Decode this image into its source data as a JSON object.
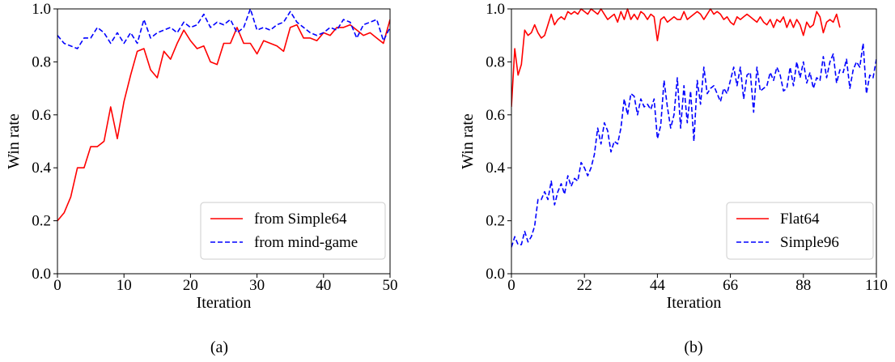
{
  "chart_data": [
    {
      "type": "line",
      "caption": "(a)",
      "xlabel": "Iteration",
      "ylabel": "Win rate",
      "xlim": [
        0,
        50
      ],
      "ylim": [
        0,
        1.0
      ],
      "xticks": [
        "0",
        "10",
        "20",
        "30",
        "40",
        "50"
      ],
      "yticks": [
        "0.0",
        "0.2",
        "0.4",
        "0.6",
        "0.8",
        "1.0"
      ],
      "legend_position": "lower-right",
      "series": [
        {
          "name": "from Simple64",
          "color": "#ff0000",
          "style": "solid",
          "x": [
            0,
            1,
            2,
            3,
            4,
            5,
            6,
            7,
            8,
            9,
            10,
            11,
            12,
            13,
            14,
            15,
            16,
            17,
            18,
            19,
            20,
            21,
            22,
            23,
            24,
            25,
            26,
            27,
            28,
            29,
            30,
            31,
            32,
            33,
            34,
            35,
            36,
            37,
            38,
            39,
            40,
            41,
            42,
            43,
            44,
            45,
            46,
            47,
            48,
            49,
            50
          ],
          "values": [
            0.2,
            0.23,
            0.29,
            0.4,
            0.4,
            0.48,
            0.48,
            0.5,
            0.63,
            0.51,
            0.65,
            0.75,
            0.84,
            0.85,
            0.77,
            0.74,
            0.84,
            0.81,
            0.87,
            0.92,
            0.88,
            0.85,
            0.86,
            0.8,
            0.79,
            0.87,
            0.87,
            0.93,
            0.87,
            0.87,
            0.83,
            0.88,
            0.87,
            0.86,
            0.84,
            0.93,
            0.94,
            0.89,
            0.89,
            0.88,
            0.91,
            0.9,
            0.93,
            0.93,
            0.94,
            0.92,
            0.9,
            0.91,
            0.89,
            0.87,
            0.96
          ]
        },
        {
          "name": "from mind-game",
          "color": "#0000ff",
          "style": "dashed",
          "x": [
            0,
            1,
            2,
            3,
            4,
            5,
            6,
            7,
            8,
            9,
            10,
            11,
            12,
            13,
            14,
            15,
            16,
            17,
            18,
            19,
            20,
            21,
            22,
            23,
            24,
            25,
            26,
            27,
            28,
            29,
            30,
            31,
            32,
            33,
            34,
            35,
            36,
            37,
            38,
            39,
            40,
            41,
            42,
            43,
            44,
            45,
            46,
            47,
            48,
            49,
            50
          ],
          "values": [
            0.9,
            0.87,
            0.86,
            0.85,
            0.89,
            0.89,
            0.93,
            0.91,
            0.87,
            0.91,
            0.87,
            0.91,
            0.87,
            0.96,
            0.89,
            0.91,
            0.92,
            0.93,
            0.91,
            0.95,
            0.93,
            0.94,
            0.98,
            0.93,
            0.95,
            0.94,
            0.96,
            0.91,
            0.93,
            1.0,
            0.92,
            0.93,
            0.92,
            0.94,
            0.95,
            0.99,
            0.95,
            0.93,
            0.91,
            0.9,
            0.91,
            0.93,
            0.92,
            0.96,
            0.95,
            0.89,
            0.94,
            0.95,
            0.96,
            0.88,
            0.93
          ]
        }
      ]
    },
    {
      "type": "line",
      "caption": "(b)",
      "xlabel": "Iteration",
      "ylabel": "Win rate",
      "xlim": [
        0,
        110
      ],
      "ylim": [
        0,
        1.0
      ],
      "xticks": [
        "0",
        "22",
        "44",
        "66",
        "88",
        "110"
      ],
      "yticks": [
        "0.0",
        "0.2",
        "0.4",
        "0.6",
        "0.8",
        "1.0"
      ],
      "legend_position": "lower-right",
      "series": [
        {
          "name": "Flat64",
          "color": "#ff0000",
          "style": "solid",
          "x": [
            0,
            1,
            2,
            3,
            4,
            5,
            6,
            7,
            8,
            9,
            10,
            11,
            12,
            13,
            14,
            15,
            16,
            17,
            18,
            19,
            20,
            21,
            22,
            23,
            24,
            25,
            26,
            27,
            28,
            29,
            30,
            31,
            32,
            33,
            34,
            35,
            36,
            37,
            38,
            39,
            40,
            41,
            42,
            43,
            44,
            45,
            46,
            47,
            48,
            49,
            50,
            51,
            52,
            53,
            54,
            55,
            56,
            57,
            58,
            59,
            60,
            61,
            62,
            63,
            64,
            65,
            66,
            67,
            68,
            69,
            70,
            71,
            72,
            73,
            74,
            75,
            76,
            77,
            78,
            79,
            80,
            81,
            82,
            83,
            84,
            85,
            86,
            87,
            88,
            89,
            90,
            91,
            92,
            93,
            94,
            95,
            96,
            97,
            98,
            99
          ],
          "values": [
            0.63,
            0.85,
            0.75,
            0.79,
            0.92,
            0.9,
            0.91,
            0.94,
            0.91,
            0.89,
            0.9,
            0.94,
            0.98,
            0.94,
            0.96,
            0.97,
            0.96,
            0.99,
            0.98,
            0.99,
            0.98,
            1.0,
            0.99,
            0.98,
            1.0,
            0.99,
            0.98,
            1.0,
            0.98,
            0.96,
            0.97,
            0.98,
            0.95,
            0.99,
            0.96,
            1.0,
            0.96,
            0.98,
            0.96,
            0.99,
            0.98,
            0.96,
            0.98,
            0.97,
            0.88,
            0.96,
            0.97,
            0.95,
            0.96,
            0.97,
            0.96,
            0.96,
            0.99,
            0.96,
            0.97,
            0.98,
            0.99,
            0.98,
            0.96,
            0.98,
            1.0,
            0.98,
            0.99,
            0.98,
            0.96,
            0.97,
            0.95,
            0.94,
            0.97,
            0.96,
            0.97,
            0.98,
            0.97,
            0.96,
            0.95,
            0.97,
            0.95,
            0.94,
            0.96,
            0.93,
            0.96,
            0.95,
            0.97,
            0.93,
            0.96,
            0.93,
            0.96,
            0.94,
            0.9,
            0.95,
            0.93,
            0.94,
            0.99,
            0.97,
            0.91,
            0.95,
            0.96,
            0.95,
            0.98,
            0.93
          ]
        },
        {
          "name": "Simple96",
          "color": "#0000ff",
          "style": "dashed",
          "x": [
            0,
            1,
            2,
            3,
            4,
            5,
            6,
            7,
            8,
            9,
            10,
            11,
            12,
            13,
            14,
            15,
            16,
            17,
            18,
            19,
            20,
            21,
            22,
            23,
            24,
            25,
            26,
            27,
            28,
            29,
            30,
            31,
            32,
            33,
            34,
            35,
            36,
            37,
            38,
            39,
            40,
            41,
            42,
            43,
            44,
            45,
            46,
            47,
            48,
            49,
            50,
            51,
            52,
            53,
            54,
            55,
            56,
            57,
            58,
            59,
            60,
            61,
            62,
            63,
            64,
            65,
            66,
            67,
            68,
            69,
            70,
            71,
            72,
            73,
            74,
            75,
            76,
            77,
            78,
            79,
            80,
            81,
            82,
            83,
            84,
            85,
            86,
            87,
            88,
            89,
            90,
            91,
            92,
            93,
            94,
            95,
            96,
            97,
            98,
            99,
            100,
            101,
            102,
            103,
            104,
            105,
            106,
            107,
            108,
            109,
            110
          ],
          "values": [
            0.1,
            0.14,
            0.11,
            0.11,
            0.16,
            0.12,
            0.14,
            0.18,
            0.28,
            0.28,
            0.31,
            0.28,
            0.35,
            0.26,
            0.31,
            0.34,
            0.3,
            0.37,
            0.33,
            0.36,
            0.35,
            0.42,
            0.4,
            0.37,
            0.4,
            0.45,
            0.55,
            0.49,
            0.57,
            0.54,
            0.46,
            0.5,
            0.49,
            0.55,
            0.66,
            0.6,
            0.68,
            0.67,
            0.6,
            0.66,
            0.63,
            0.64,
            0.62,
            0.66,
            0.51,
            0.56,
            0.73,
            0.63,
            0.55,
            0.6,
            0.74,
            0.55,
            0.71,
            0.57,
            0.69,
            0.5,
            0.73,
            0.64,
            0.78,
            0.68,
            0.7,
            0.71,
            0.68,
            0.65,
            0.7,
            0.68,
            0.73,
            0.78,
            0.71,
            0.78,
            0.66,
            0.75,
            0.76,
            0.61,
            0.78,
            0.69,
            0.7,
            0.71,
            0.76,
            0.73,
            0.78,
            0.75,
            0.69,
            0.7,
            0.78,
            0.71,
            0.8,
            0.74,
            0.8,
            0.72,
            0.76,
            0.7,
            0.74,
            0.73,
            0.82,
            0.74,
            0.8,
            0.83,
            0.72,
            0.77,
            0.76,
            0.81,
            0.7,
            0.77,
            0.8,
            0.78,
            0.87,
            0.68,
            0.75,
            0.74,
            0.81
          ]
        }
      ]
    }
  ]
}
